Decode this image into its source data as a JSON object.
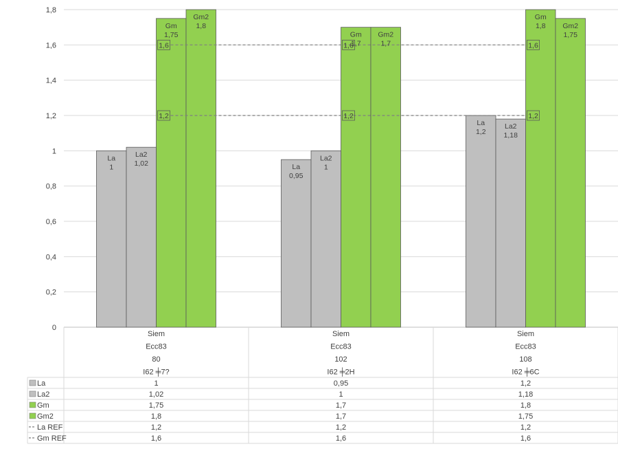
{
  "chart_data": {
    "type": "bar",
    "title": "",
    "xlabel": "",
    "ylabel": "",
    "ylim": [
      0,
      1.8
    ],
    "yticks": [
      "0",
      "0,2",
      "0,4",
      "0,6",
      "0,8",
      "1",
      "1,2",
      "1,4",
      "1,6",
      "1,8"
    ],
    "ytick_values": [
      0,
      0.2,
      0.4,
      0.6,
      0.8,
      1.0,
      1.2,
      1.4,
      1.6,
      1.8
    ],
    "grid": true,
    "categories": [
      [
        "Siem",
        "Ecc83",
        "80",
        "I62 ╪7?"
      ],
      [
        "Siem",
        "Ecc83",
        "102",
        "I62 ╪2H"
      ],
      [
        "Siem",
        "Ecc83",
        "108",
        "I62 ╪6C"
      ]
    ],
    "series": [
      {
        "name": "La",
        "kind": "bar",
        "color": "#bfbfbf",
        "values": [
          1,
          0.95,
          1.2
        ],
        "value_labels": [
          "1",
          "0,95",
          "1,2"
        ]
      },
      {
        "name": "La2",
        "kind": "bar",
        "color": "#bfbfbf",
        "values": [
          1.02,
          1,
          1.18
        ],
        "value_labels": [
          "1,02",
          "1",
          "1,18"
        ]
      },
      {
        "name": "Gm",
        "kind": "bar",
        "color": "#92d050",
        "values": [
          1.75,
          1.7,
          1.8
        ],
        "value_labels": [
          "1,75",
          "1,7",
          "1,8"
        ]
      },
      {
        "name": "Gm2",
        "kind": "bar",
        "color": "#92d050",
        "values": [
          1.8,
          1.7,
          1.75
        ],
        "value_labels": [
          "1,8",
          "1,7",
          "1,75"
        ]
      },
      {
        "name": "La REF",
        "kind": "line",
        "color": "#7f7f7f",
        "values": [
          1.2,
          1.2,
          1.2
        ],
        "value_labels": [
          "1,2",
          "1,2",
          "1,2"
        ]
      },
      {
        "name": "Gm REF",
        "kind": "line",
        "color": "#7f7f7f",
        "values": [
          1.6,
          1.6,
          1.6
        ],
        "value_labels": [
          "1,6",
          "1,6",
          "1,6"
        ]
      }
    ],
    "data_table": {
      "rows": [
        {
          "name": "La",
          "cells": [
            "1",
            "0,95",
            "1,2"
          ]
        },
        {
          "name": "La2",
          "cells": [
            "1,02",
            "1",
            "1,18"
          ]
        },
        {
          "name": "Gm",
          "cells": [
            "1,75",
            "1,7",
            "1,8"
          ]
        },
        {
          "name": "Gm2",
          "cells": [
            "1,8",
            "1,7",
            "1,75"
          ]
        },
        {
          "name": "La REF",
          "cells": [
            "1,2",
            "1,2",
            "1,2"
          ]
        },
        {
          "name": "Gm REF",
          "cells": [
            "1,6",
            "1,6",
            "1,6"
          ]
        }
      ]
    }
  }
}
